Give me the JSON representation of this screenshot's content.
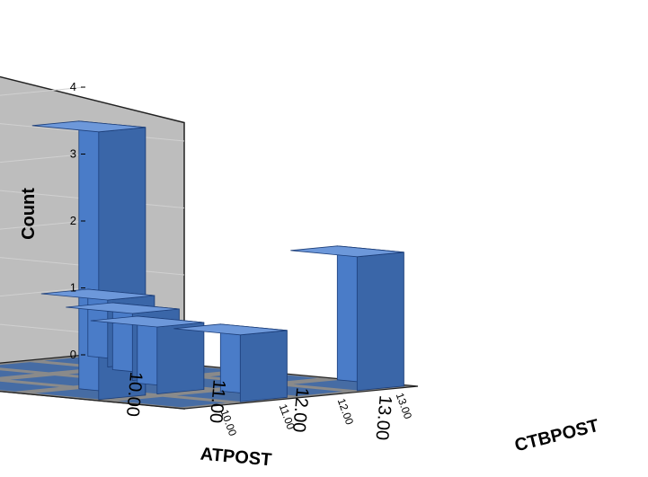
{
  "chart_data": {
    "type": "bar3d",
    "title": "",
    "x_label": "ATPOST",
    "y_label": "Count",
    "z_label": "CTBPOST",
    "x_categories": [
      "10.00",
      "11.00",
      "12.00",
      "13.00"
    ],
    "z_categories": [
      "10.00",
      "11.00",
      "12.00",
      "13.00"
    ],
    "y_ticks": [
      "0",
      "1",
      "2",
      "3",
      "4"
    ],
    "ylim": [
      0,
      4.5
    ],
    "bars": [
      {
        "atpost": "10.00",
        "ctbpost": "13.00",
        "count": 1
      },
      {
        "atpost": "11.00",
        "ctbpost": "12.00",
        "count": 1
      },
      {
        "atpost": "12.00",
        "ctbpost": "10.00",
        "count": 4
      },
      {
        "atpost": "12.00",
        "ctbpost": "11.00",
        "count": 1
      },
      {
        "atpost": "13.00",
        "ctbpost": "13.00",
        "count": 2
      },
      {
        "atpost": "13.00",
        "ctbpost": "11.00",
        "count": 1
      }
    ],
    "grid": true,
    "colors": {
      "bar_front": "#4a7cc8",
      "bar_side": "#3a66a8",
      "bar_top": "#6d98da",
      "wall_back": "#bdbdbd",
      "wall_left": "#9a9a9a",
      "floor": "#8a8a8a",
      "gridline": "#d0d0d0"
    }
  }
}
